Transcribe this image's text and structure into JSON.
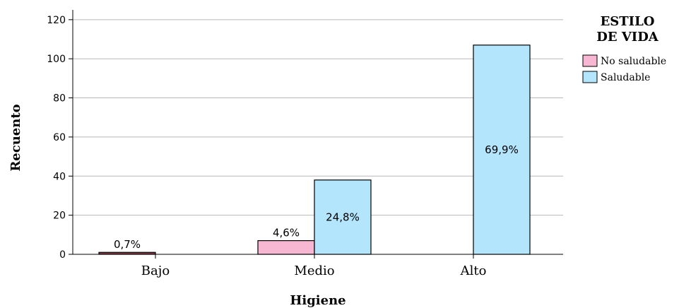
{
  "chart_data": {
    "type": "bar",
    "xlabel": "Higiene",
    "ylabel": "Recuento",
    "categories": [
      "Bajo",
      "Medio",
      "Alto"
    ],
    "ylim": [
      0,
      125
    ],
    "yticks": [
      0,
      20,
      40,
      60,
      80,
      100,
      120
    ],
    "grid": true,
    "legend": {
      "title_lines": [
        "ESTILO",
        "DE VIDA"
      ],
      "placement": "right"
    },
    "series": [
      {
        "name": "No saludable",
        "color": "#f7b6d2",
        "values": [
          1,
          7,
          0
        ],
        "labels": [
          "0,7%",
          "4,6%",
          ""
        ]
      },
      {
        "name": "Saludable",
        "color": "#b3e5fc",
        "values": [
          0,
          38,
          107
        ],
        "labels": [
          "",
          "24,8%",
          "69,9%"
        ]
      }
    ],
    "bar_colors": {
      "bajo_dark": "#8b3a4a"
    }
  }
}
